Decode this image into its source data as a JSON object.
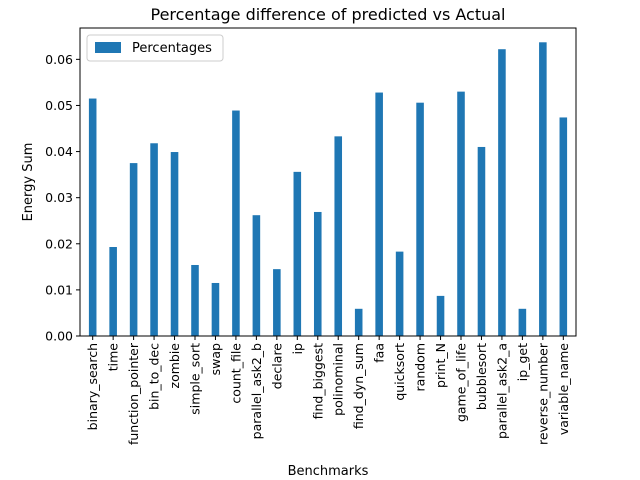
{
  "chart_data": {
    "type": "bar",
    "title": "Percentage difference of predicted vs Actual",
    "xlabel": "Benchmarks",
    "ylabel": "Energy Sum",
    "ylim": [
      0,
      0.0668
    ],
    "yticks": [
      "0.00",
      "0.01",
      "0.02",
      "0.03",
      "0.04",
      "0.05",
      "0.06"
    ],
    "grid": false,
    "legend_placement": "top-left",
    "categories": [
      "binary_search",
      "time",
      "function_pointer",
      "bin_to_dec",
      "zombie",
      "simple_sort",
      "swap",
      "count_file",
      "parallel_ask2_b",
      "declare",
      "ip",
      "find_biggest",
      "polinominal",
      "find_dyn_sum",
      "faa",
      "quicksort",
      "random",
      "print_N",
      "game_of_life",
      "bubblesort",
      "parallel_ask2_a",
      "ip_get",
      "reverse_number",
      "variable_name"
    ],
    "series": [
      {
        "name": "Percentages",
        "color": "#1f77b4",
        "values": [
          0.0515,
          0.0193,
          0.0375,
          0.0418,
          0.0399,
          0.0154,
          0.0115,
          0.0489,
          0.0262,
          0.0145,
          0.0356,
          0.0269,
          0.0433,
          0.0059,
          0.0528,
          0.0183,
          0.0506,
          0.0087,
          0.053,
          0.041,
          0.0622,
          0.0059,
          0.0637,
          0.0474
        ]
      }
    ]
  }
}
